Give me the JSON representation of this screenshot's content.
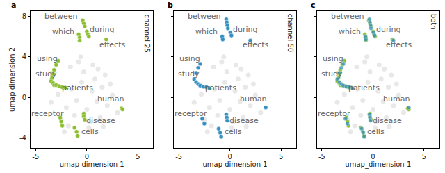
{
  "chart_data": [
    {
      "type": "scatter",
      "panel": "a",
      "label": "channel 25",
      "x_label": "umap dimension 1",
      "y_label": "umap dimension 2",
      "xlim": [
        -5.5,
        6.5
      ],
      "ylim": [
        -5,
        8.5
      ],
      "xticks": [
        -5,
        0,
        5
      ],
      "yticks": [
        -4,
        0,
        4,
        8
      ],
      "grid": false,
      "marker": "circle",
      "series": [
        {
          "color": "#cccccc",
          "x": [
            -3.5,
            -2.8,
            -2.0,
            -1.5,
            -1.0,
            -0.5,
            0.0,
            0.5,
            1.0,
            1.5,
            2.0,
            2.5,
            3.0,
            -2.5,
            -1.8,
            -1.2,
            -0.3,
            0.3,
            0.8,
            1.3,
            1.8,
            2.3,
            -1.6,
            -0.8,
            0.2,
            1.1,
            -2.2,
            -0.6,
            0.6,
            1.6
          ],
          "y": [
            -0.5,
            0.3,
            -1.0,
            0.8,
            -0.3,
            1.5,
            -1.2,
            0.6,
            -0.4,
            1.0,
            -0.8,
            0.2,
            -1.5,
            -2.2,
            -2.8,
            -1.8,
            2.5,
            -2.4,
            1.8,
            -2.0,
            2.2,
            1.3,
            3.0,
            3.5,
            -3.0,
            2.8,
            -3.4,
            4.0,
            3.2,
            -2.9
          ]
        },
        {
          "color": "#86bc25",
          "x": [
            -0.4,
            -0.3,
            -0.2,
            -0.8,
            -0.7,
            -0.7,
            0.0,
            0.1,
            0.2,
            1.9,
            -2.8,
            -3.0,
            -3.2,
            -3.3,
            -3.4,
            -3.5,
            -3.3,
            -3.2,
            -3.0,
            -2.7,
            -2.4,
            -2.1,
            3.4,
            3.5,
            -2.6,
            -2.5,
            -2.4,
            -0.3,
            -0.3,
            -0.2,
            -1.2,
            -1.0,
            -0.9
          ],
          "y": [
            7.6,
            7.3,
            7.0,
            6.2,
            5.9,
            5.6,
            6.5,
            6.2,
            6.0,
            5.7,
            3.6,
            3.2,
            2.7,
            2.3,
            1.9,
            1.6,
            1.4,
            1.2,
            1.2,
            1.1,
            1.0,
            0.95,
            -1.1,
            -1.2,
            -2.0,
            -2.4,
            -2.8,
            -1.6,
            -1.9,
            -2.2,
            -3.0,
            -3.4,
            -3.8
          ]
        }
      ],
      "annotations": [
        {
          "text": "between",
          "x": -2.5,
          "y": 8.0
        },
        {
          "text": "which",
          "x": -2.3,
          "y": 6.5
        },
        {
          "text": "during",
          "x": 1.5,
          "y": 6.7
        },
        {
          "text": "effects",
          "x": 2.5,
          "y": 5.2
        },
        {
          "text": "using",
          "x": -3.9,
          "y": 3.8
        },
        {
          "text": "study",
          "x": -4.0,
          "y": 2.3
        },
        {
          "text": "patients",
          "x": -0.9,
          "y": 0.9
        },
        {
          "text": "human",
          "x": 2.3,
          "y": -0.2
        },
        {
          "text": "receptor",
          "x": -3.8,
          "y": -1.6
        },
        {
          "text": "disease",
          "x": 1.4,
          "y": -2.3
        },
        {
          "text": "cells",
          "x": 0.3,
          "y": -3.4
        }
      ]
    },
    {
      "type": "scatter",
      "panel": "b",
      "label": "channel 50",
      "x_label": "umap dimension 1",
      "xlim": [
        -5.5,
        6.5
      ],
      "ylim": [
        -5,
        8.5
      ],
      "xticks": [
        -5,
        0,
        5
      ],
      "yticks": [
        -4,
        0,
        4,
        8
      ],
      "grid": false,
      "marker": "circle",
      "tick_labels": "x",
      "series": [
        {
          "color": "#cccccc",
          "x": [
            -3.5,
            -2.8,
            -2.0,
            -1.5,
            -1.0,
            -0.5,
            0.0,
            0.5,
            1.0,
            1.5,
            2.0,
            2.5,
            3.0,
            -2.5,
            -1.8,
            -1.2,
            -0.3,
            0.3,
            0.8,
            1.3,
            1.8,
            2.3,
            -1.6,
            -0.8,
            0.2,
            1.1,
            -2.2,
            -0.6,
            0.6,
            1.6
          ],
          "y": [
            -0.5,
            0.3,
            -1.0,
            0.8,
            -0.3,
            1.5,
            -1.2,
            0.6,
            -0.4,
            1.0,
            -0.8,
            0.2,
            -1.5,
            -2.2,
            -2.8,
            -1.8,
            2.5,
            -2.4,
            1.8,
            -2.0,
            2.2,
            1.3,
            3.0,
            3.5,
            -3.0,
            2.8,
            -3.4,
            4.0,
            3.2,
            -2.9
          ]
        },
        {
          "color": "#2b8cbe",
          "x": [
            -0.35,
            -0.3,
            -0.25,
            -0.2,
            -0.75,
            -0.7,
            0.05,
            0.15,
            2.0,
            -2.9,
            -3.1,
            -3.3,
            -3.5,
            -3.3,
            -3.1,
            -2.9,
            -2.6,
            -2.3,
            -2.0,
            3.5,
            -2.7,
            -2.5,
            -0.35,
            -0.3,
            -0.25,
            -1.1,
            -0.95,
            -0.85
          ],
          "y": [
            7.7,
            7.4,
            7.1,
            6.8,
            6.0,
            5.7,
            6.4,
            6.1,
            5.6,
            3.3,
            2.9,
            2.4,
            1.8,
            1.5,
            1.3,
            1.15,
            1.05,
            1.0,
            0.9,
            -1.0,
            -2.1,
            -2.6,
            -1.7,
            -2.0,
            -2.3,
            -3.1,
            -3.5,
            -3.9
          ]
        }
      ],
      "annotations": [
        {
          "text": "between",
          "x": -2.5,
          "y": 8.0
        },
        {
          "text": "which",
          "x": -2.3,
          "y": 6.5
        },
        {
          "text": "during",
          "x": 1.5,
          "y": 6.7
        },
        {
          "text": "effects",
          "x": 2.5,
          "y": 5.2
        },
        {
          "text": "using",
          "x": -3.9,
          "y": 3.8
        },
        {
          "text": "study",
          "x": -4.0,
          "y": 2.3
        },
        {
          "text": "patients",
          "x": -0.9,
          "y": 0.9
        },
        {
          "text": "human",
          "x": 2.3,
          "y": -0.2
        },
        {
          "text": "receptor",
          "x": -3.8,
          "y": -1.6
        },
        {
          "text": "disease",
          "x": 1.4,
          "y": -2.3
        },
        {
          "text": "cells",
          "x": 0.3,
          "y": -3.4
        }
      ]
    },
    {
      "type": "scatter",
      "panel": "c",
      "label": "both",
      "x_label": "umap_dimension 1",
      "xlim": [
        -5.5,
        6.5
      ],
      "ylim": [
        -5,
        8.5
      ],
      "xticks": [
        -5,
        0,
        5
      ],
      "yticks": [
        -4,
        0,
        4,
        8
      ],
      "grid": false,
      "marker": "circle",
      "tick_labels": "x",
      "series": [
        {
          "color": "#cccccc",
          "x": [
            -3.5,
            -2.8,
            -2.0,
            -1.5,
            -1.0,
            -0.5,
            0.0,
            0.5,
            1.0,
            1.5,
            2.0,
            2.5,
            3.0,
            -2.5,
            -1.8,
            -1.2,
            -0.3,
            0.3,
            0.8,
            1.3,
            1.8,
            2.3,
            -1.6,
            -0.8,
            0.2,
            1.1,
            -2.2,
            -0.6,
            0.6,
            1.6
          ],
          "y": [
            -0.5,
            0.3,
            -1.0,
            0.8,
            -0.3,
            1.5,
            -1.2,
            0.6,
            -0.4,
            1.0,
            -0.8,
            0.2,
            -1.5,
            -2.2,
            -2.8,
            -1.8,
            2.5,
            -2.4,
            1.8,
            -2.0,
            2.2,
            1.3,
            3.0,
            3.5,
            -3.0,
            2.8,
            -3.4,
            4.0,
            3.2,
            -2.9
          ]
        },
        {
          "color": "#86bc25",
          "x": [
            -0.4,
            -0.3,
            -0.2,
            -0.8,
            -0.7,
            -0.7,
            0.0,
            0.1,
            0.2,
            1.9,
            -2.8,
            -3.0,
            -3.2,
            -3.3,
            -3.4,
            -3.5,
            -3.3,
            -3.2,
            -3.0,
            -2.7,
            -2.4,
            -2.1,
            3.4,
            3.5,
            -2.6,
            -2.5,
            -2.4,
            -0.3,
            -0.3,
            -0.2,
            -1.2,
            -1.0,
            -0.9
          ],
          "y": [
            7.6,
            7.3,
            7.0,
            6.2,
            5.9,
            5.6,
            6.5,
            6.2,
            6.0,
            5.7,
            3.6,
            3.2,
            2.7,
            2.3,
            1.9,
            1.6,
            1.4,
            1.2,
            1.2,
            1.1,
            1.0,
            0.95,
            -1.1,
            -1.2,
            -2.0,
            -2.4,
            -2.8,
            -1.6,
            -1.9,
            -2.2,
            -3.0,
            -3.4,
            -3.8
          ]
        },
        {
          "color": "#2b8cbe",
          "x": [
            -0.35,
            -0.3,
            -0.25,
            -0.2,
            -0.75,
            -0.7,
            0.05,
            0.15,
            2.0,
            -2.9,
            -3.1,
            -3.3,
            -3.5,
            -3.3,
            -3.1,
            -2.9,
            -2.6,
            -2.3,
            -2.0,
            3.5,
            -2.7,
            -2.5,
            -0.35,
            -0.3,
            -0.25,
            -1.1,
            -0.95,
            -0.85
          ],
          "y": [
            7.7,
            7.4,
            7.1,
            6.8,
            6.0,
            5.7,
            6.4,
            6.1,
            5.6,
            3.3,
            2.9,
            2.4,
            1.8,
            1.5,
            1.3,
            1.15,
            1.05,
            1.0,
            0.9,
            -1.0,
            -2.1,
            -2.6,
            -1.7,
            -2.0,
            -2.3,
            -3.1,
            -3.5,
            -3.9
          ]
        }
      ],
      "annotations": [
        {
          "text": "between",
          "x": -2.5,
          "y": 8.0
        },
        {
          "text": "which",
          "x": -2.3,
          "y": 6.5
        },
        {
          "text": "during",
          "x": 1.5,
          "y": 6.7
        },
        {
          "text": "effects",
          "x": 2.5,
          "y": 5.2
        },
        {
          "text": "using",
          "x": -3.9,
          "y": 3.8
        },
        {
          "text": "study",
          "x": -4.0,
          "y": 2.3
        },
        {
          "text": "patients",
          "x": -0.9,
          "y": 0.9
        },
        {
          "text": "human",
          "x": 2.3,
          "y": -0.2
        },
        {
          "text": "receptor",
          "x": -3.8,
          "y": -1.6
        },
        {
          "text": "disease",
          "x": 1.4,
          "y": -2.3
        },
        {
          "text": "cells",
          "x": 0.3,
          "y": -3.4
        }
      ]
    }
  ]
}
